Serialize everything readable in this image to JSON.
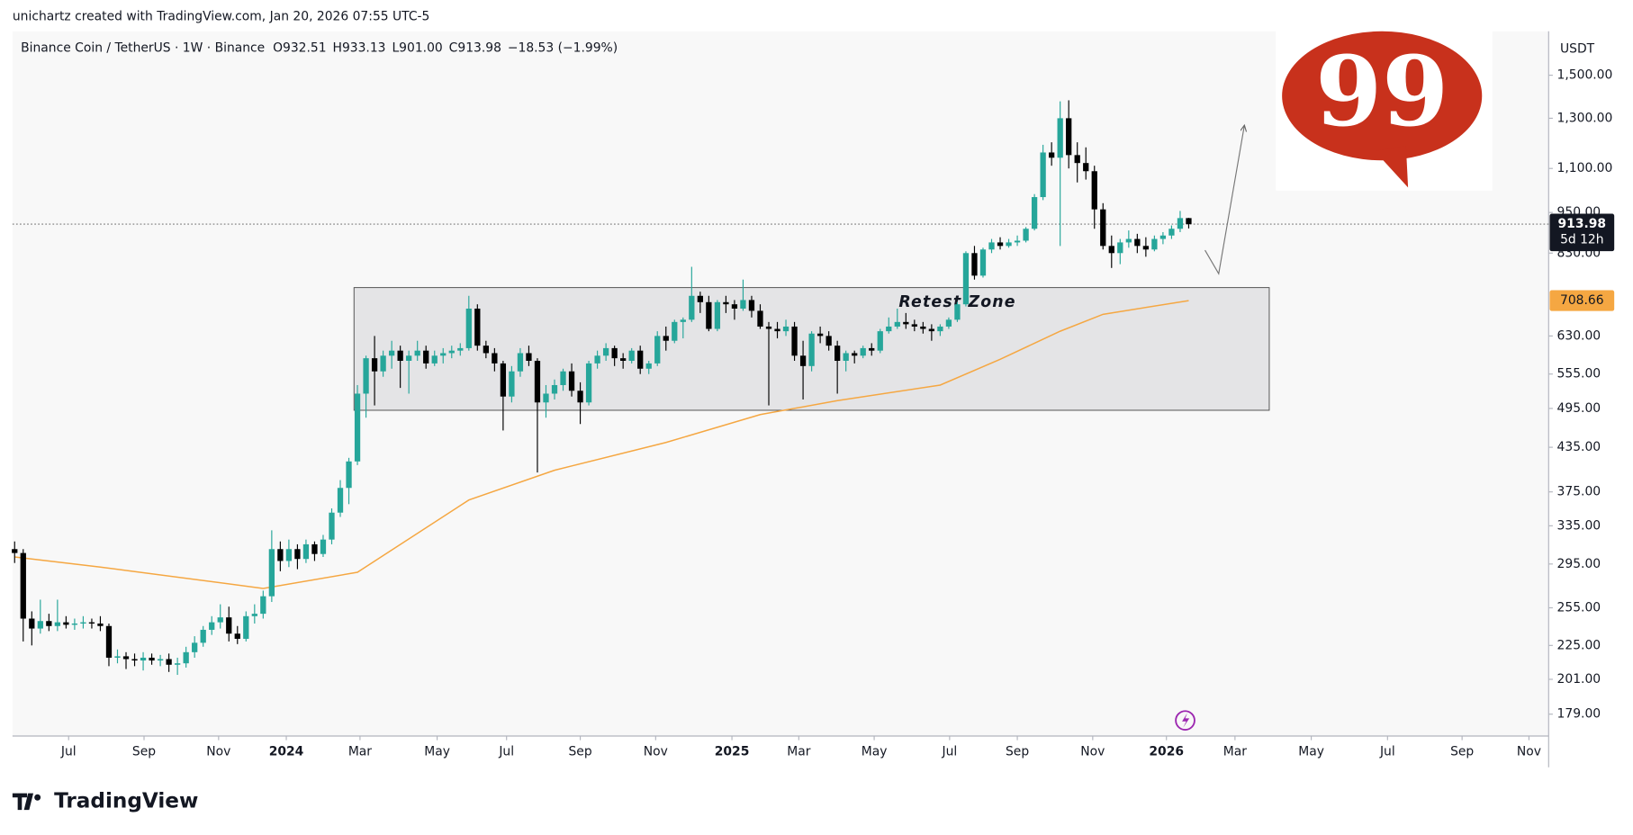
{
  "header": {
    "attribution": "unichartz created with TradingView.com, Jan 20, 2026 07:55 UTC-5",
    "symbol": "Binance Coin / TetherUS · 1W · Binance",
    "ohlc": [
      "O932.51",
      "H933.13",
      "L901.00",
      "C913.98",
      "−18.53 (−1.99%)"
    ]
  },
  "logo_text": "99",
  "footer": "TradingView",
  "chart_data": {
    "type": "candlestick",
    "currency": "USDT",
    "log_scale": true,
    "grid": false,
    "xlim": [
      -0.25,
      179
    ],
    "ylim": [
      167.6,
      1736
    ],
    "yticks": [
      {
        "value": 179,
        "label": "179.00"
      },
      {
        "value": 201,
        "label": "201.00"
      },
      {
        "value": 225,
        "label": "225.00"
      },
      {
        "value": 255,
        "label": "255.00"
      },
      {
        "value": 295,
        "label": "295.00"
      },
      {
        "value": 335,
        "label": "335.00"
      },
      {
        "value": 375,
        "label": "375.00"
      },
      {
        "value": 435,
        "label": "435.00"
      },
      {
        "value": 495,
        "label": "495.00"
      },
      {
        "value": 555,
        "label": "555.00"
      },
      {
        "value": 630,
        "label": "630.00"
      },
      {
        "value": 830,
        "label": "830.00"
      },
      {
        "value": 950,
        "label": "950.00"
      },
      {
        "value": 1100,
        "label": "1,100.00"
      },
      {
        "value": 1300,
        "label": "1,300.00"
      },
      {
        "value": 1500,
        "label": "1,500.00"
      }
    ],
    "xticks": [
      {
        "value": 6.3,
        "label": "Jul"
      },
      {
        "value": 15.1,
        "label": "Sep"
      },
      {
        "value": 23.8,
        "label": "Nov"
      },
      {
        "value": 31.7,
        "label": "2024"
      },
      {
        "value": 40.3,
        "label": "Mar"
      },
      {
        "value": 49.3,
        "label": "May"
      },
      {
        "value": 57.4,
        "label": "Jul"
      },
      {
        "value": 66.0,
        "label": "Sep"
      },
      {
        "value": 74.8,
        "label": "Nov"
      },
      {
        "value": 83.7,
        "label": "2025"
      },
      {
        "value": 91.5,
        "label": "Mar"
      },
      {
        "value": 100.3,
        "label": "May"
      },
      {
        "value": 109.1,
        "label": "Jul"
      },
      {
        "value": 117.0,
        "label": "Sep"
      },
      {
        "value": 125.8,
        "label": "Nov"
      },
      {
        "value": 134.4,
        "label": "2026"
      },
      {
        "value": 142.4,
        "label": "Mar"
      },
      {
        "value": 151.3,
        "label": "May"
      },
      {
        "value": 160.2,
        "label": "Jul"
      },
      {
        "value": 168.9,
        "label": "Sep"
      },
      {
        "value": 176.7,
        "label": "Nov"
      }
    ],
    "open": [
      310,
      306,
      246,
      238,
      244,
      240,
      243,
      241,
      242,
      243,
      242,
      240,
      216,
      217,
      215,
      214,
      216,
      214,
      215,
      211,
      212,
      220,
      227,
      237,
      243,
      247,
      234,
      230,
      248,
      250,
      265,
      310,
      298,
      310,
      300,
      315,
      305,
      320,
      350,
      380,
      415,
      520,
      585,
      560,
      590,
      600,
      580,
      590,
      600,
      575,
      590,
      595,
      600,
      605,
      690,
      610,
      595,
      575,
      515,
      560,
      595,
      580,
      505,
      520,
      535,
      560,
      525,
      505,
      575,
      590,
      605,
      585,
      580,
      600,
      565,
      575,
      630,
      620,
      660,
      665,
      720,
      705,
      645,
      705,
      700,
      690,
      710,
      685,
      650,
      645,
      640,
      650,
      590,
      570,
      635,
      630,
      610,
      580,
      595,
      590,
      605,
      600,
      640,
      650,
      660,
      655,
      650,
      645,
      640,
      650,
      665,
      700,
      830,
      770,
      840,
      860,
      850,
      860,
      865,
      900,
      1000,
      1160,
      1140,
      1300,
      1150,
      1120,
      1090,
      960,
      850,
      830,
      860,
      870,
      850,
      840,
      870,
      880,
      900,
      932.51
    ],
    "high": [
      318,
      310,
      252,
      262,
      250,
      262,
      248,
      246,
      248,
      246,
      248,
      242,
      222,
      220,
      219,
      220,
      219,
      218,
      219,
      216,
      224,
      232,
      240,
      248,
      258,
      256,
      240,
      252,
      258,
      270,
      330,
      318,
      320,
      315,
      320,
      318,
      325,
      355,
      390,
      420,
      535,
      590,
      630,
      600,
      620,
      610,
      600,
      620,
      610,
      600,
      605,
      610,
      615,
      720,
      700,
      620,
      605,
      580,
      570,
      605,
      610,
      585,
      535,
      545,
      565,
      575,
      540,
      580,
      600,
      615,
      610,
      595,
      605,
      610,
      580,
      640,
      650,
      665,
      670,
      793,
      730,
      720,
      710,
      720,
      710,
      760,
      720,
      700,
      660,
      660,
      665,
      660,
      620,
      640,
      650,
      640,
      620,
      600,
      600,
      610,
      615,
      645,
      670,
      690,
      680,
      665,
      660,
      655,
      655,
      670,
      705,
      835,
      850,
      845,
      870,
      875,
      870,
      880,
      905,
      1010,
      1190,
      1200,
      1375,
      1380,
      1200,
      1180,
      1110,
      980,
      880,
      870,
      895,
      885,
      875,
      880,
      890,
      910,
      955,
      933.13
    ],
    "low": [
      296,
      228,
      225,
      234,
      236,
      236,
      238,
      237,
      238,
      238,
      236,
      210,
      212,
      208,
      210,
      207,
      211,
      210,
      206,
      204,
      209,
      216,
      224,
      233,
      238,
      228,
      226,
      228,
      242,
      246,
      260,
      288,
      292,
      290,
      296,
      298,
      302,
      315,
      345,
      360,
      410,
      480,
      500,
      550,
      565,
      530,
      520,
      580,
      565,
      570,
      575,
      585,
      590,
      600,
      600,
      585,
      560,
      460,
      505,
      550,
      570,
      400,
      480,
      510,
      525,
      515,
      470,
      500,
      565,
      580,
      570,
      565,
      575,
      555,
      555,
      570,
      600,
      615,
      625,
      660,
      680,
      640,
      640,
      680,
      665,
      685,
      670,
      645,
      500,
      625,
      630,
      580,
      510,
      560,
      615,
      600,
      520,
      560,
      575,
      585,
      590,
      595,
      635,
      645,
      645,
      640,
      635,
      620,
      630,
      645,
      660,
      695,
      760,
      765,
      830,
      840,
      845,
      850,
      860,
      895,
      990,
      1110,
      850,
      1100,
      1050,
      1060,
      900,
      840,
      790,
      800,
      845,
      830,
      820,
      835,
      855,
      870,
      890,
      901.0
    ],
    "close": [
      306,
      246,
      238,
      244,
      240,
      243,
      241,
      242,
      243,
      242,
      240,
      216,
      217,
      215,
      214,
      216,
      214,
      215,
      211,
      212,
      220,
      227,
      237,
      243,
      247,
      234,
      230,
      248,
      250,
      265,
      310,
      298,
      310,
      300,
      315,
      305,
      320,
      350,
      380,
      415,
      520,
      585,
      560,
      590,
      600,
      580,
      590,
      600,
      575,
      590,
      595,
      600,
      605,
      690,
      610,
      595,
      575,
      515,
      560,
      595,
      580,
      505,
      520,
      535,
      560,
      525,
      505,
      575,
      590,
      605,
      585,
      580,
      600,
      565,
      575,
      630,
      620,
      660,
      665,
      720,
      705,
      645,
      705,
      700,
      690,
      710,
      685,
      650,
      645,
      640,
      650,
      590,
      570,
      635,
      630,
      610,
      580,
      595,
      590,
      605,
      600,
      640,
      650,
      660,
      655,
      650,
      645,
      640,
      650,
      665,
      700,
      830,
      770,
      840,
      860,
      850,
      860,
      865,
      900,
      1000,
      1160,
      1140,
      1300,
      1150,
      1120,
      1090,
      960,
      850,
      830,
      860,
      870,
      850,
      840,
      870,
      880,
      900,
      932.51,
      913.98
    ],
    "up_color": "#26a69a",
    "down_color": "#000000",
    "countdown": "5d 12h",
    "ma": {
      "x": [
        0,
        10,
        29,
        40,
        53,
        63,
        76,
        87,
        96,
        108,
        115,
        122,
        127,
        137
      ],
      "values": [
        302,
        292,
        272,
        287,
        365,
        403,
        442,
        485,
        508,
        535,
        583,
        640,
        677,
        708.66
      ],
      "color": "#f5a742"
    },
    "zone": {
      "label": "Retest Zone",
      "x": [
        39.6,
        146.4
      ],
      "y": [
        492,
        740
      ]
    },
    "projection": {
      "x": [
        138.9,
        140.5,
        143.5
      ],
      "y": [
        838,
        775,
        1270
      ]
    }
  }
}
